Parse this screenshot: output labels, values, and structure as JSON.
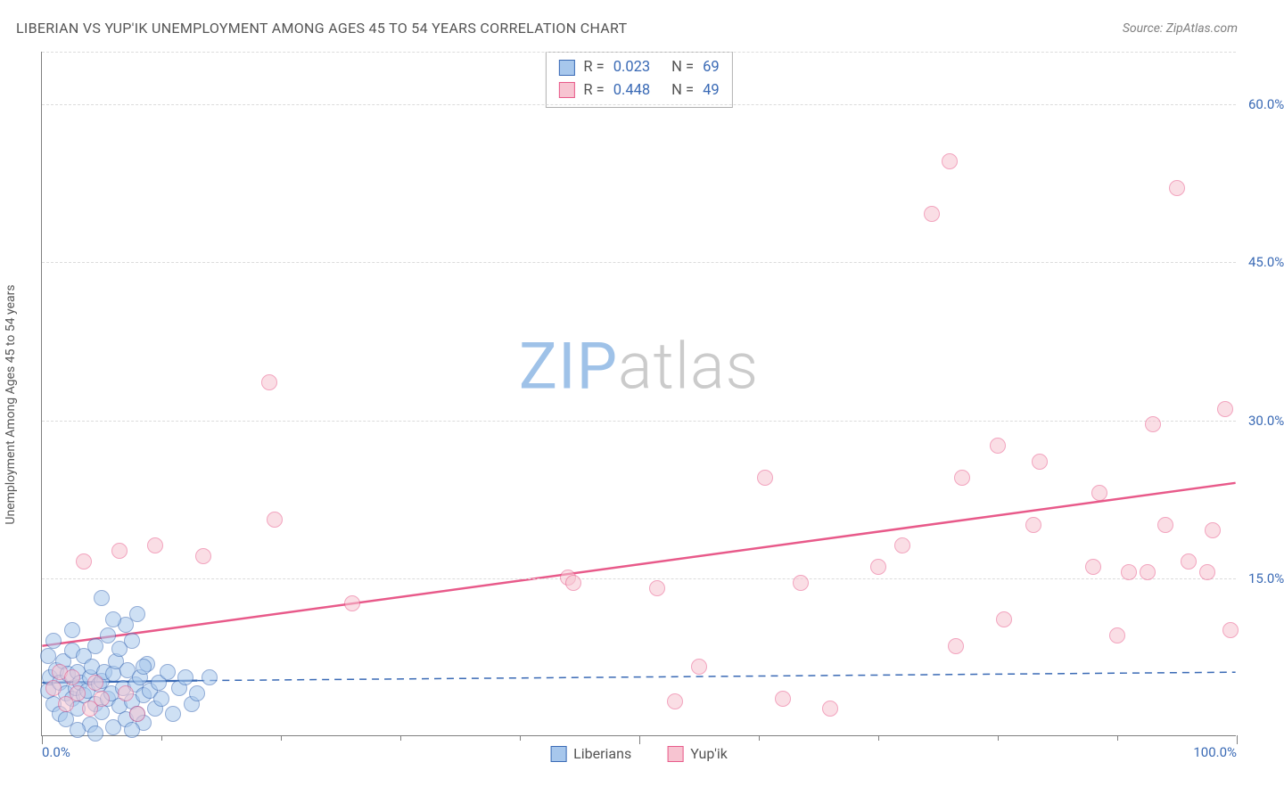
{
  "header": {
    "title": "LIBERIAN VS YUP'IK UNEMPLOYMENT AMONG AGES 45 TO 54 YEARS CORRELATION CHART",
    "source": "Source: ZipAtlas.com"
  },
  "ylabel": "Unemployment Among Ages 45 to 54 years",
  "watermark": {
    "zip": "ZIP",
    "atlas": "atlas",
    "zip_color": "#9fc2e8",
    "atlas_color": "#cbcbcb"
  },
  "chart": {
    "type": "scatter",
    "xlim": [
      0,
      100
    ],
    "ylim": [
      0,
      65
    ],
    "y_ticks": [
      15.0,
      30.0,
      45.0,
      60.0
    ],
    "y_tick_labels": [
      "15.0%",
      "30.0%",
      "45.0%",
      "60.0%"
    ],
    "x_ticks_minor": [
      0,
      10,
      20,
      30,
      40,
      50,
      60,
      70,
      80,
      90,
      100
    ],
    "x_ticks_major": [
      0,
      100
    ],
    "x_tick_labels": {
      "0": "0.0%",
      "100": "100.0%"
    },
    "background_color": "#ffffff",
    "grid_color": "#dcdcdc",
    "axis_color": "#808080",
    "marker_radius": 9,
    "marker_opacity": 0.55,
    "series": [
      {
        "name": "Liberians",
        "color_fill": "#a7c7ec",
        "color_stroke": "#3a6ab5",
        "r_value": "0.023",
        "n_value": "69",
        "trend": {
          "x1": 0,
          "y1": 5.0,
          "x2": 13,
          "y2": 5.2,
          "style": "solid",
          "stroke": "#3a6ab5",
          "width": 2.2
        },
        "trend_ext": {
          "x1": 13,
          "y1": 5.2,
          "x2": 100,
          "y2": 6.0,
          "style": "dashed",
          "stroke": "#3a6ab5",
          "width": 1.5
        },
        "points": [
          [
            0.5,
            4.2
          ],
          [
            0.7,
            5.5
          ],
          [
            1.0,
            3.0
          ],
          [
            1.2,
            6.2
          ],
          [
            1.5,
            2.0
          ],
          [
            1.5,
            5.0
          ],
          [
            1.8,
            7.0
          ],
          [
            2.0,
            4.0
          ],
          [
            2.0,
            1.5
          ],
          [
            2.2,
            5.8
          ],
          [
            2.5,
            3.5
          ],
          [
            2.5,
            8.0
          ],
          [
            2.8,
            4.5
          ],
          [
            3.0,
            6.0
          ],
          [
            3.0,
            2.5
          ],
          [
            3.2,
            5.0
          ],
          [
            3.5,
            3.8
          ],
          [
            3.5,
            7.5
          ],
          [
            3.8,
            4.2
          ],
          [
            4.0,
            5.5
          ],
          [
            4.0,
            1.0
          ],
          [
            4.2,
            6.5
          ],
          [
            4.5,
            3.0
          ],
          [
            4.5,
            8.5
          ],
          [
            4.8,
            4.8
          ],
          [
            5.0,
            5.2
          ],
          [
            5.0,
            2.2
          ],
          [
            5.2,
            6.0
          ],
          [
            5.5,
            3.5
          ],
          [
            5.5,
            9.5
          ],
          [
            5.8,
            4.0
          ],
          [
            6.0,
            5.8
          ],
          [
            6.0,
            0.8
          ],
          [
            6.2,
            7.0
          ],
          [
            6.5,
            2.8
          ],
          [
            6.5,
            8.2
          ],
          [
            6.8,
            4.5
          ],
          [
            7.0,
            10.5
          ],
          [
            7.0,
            1.5
          ],
          [
            7.2,
            6.2
          ],
          [
            7.5,
            3.2
          ],
          [
            7.5,
            9.0
          ],
          [
            7.8,
            4.8
          ],
          [
            8.0,
            11.5
          ],
          [
            8.0,
            2.0
          ],
          [
            8.2,
            5.5
          ],
          [
            8.5,
            3.8
          ],
          [
            8.5,
            1.2
          ],
          [
            8.8,
            6.8
          ],
          [
            9.0,
            4.2
          ],
          [
            5.0,
            13.0
          ],
          [
            9.5,
            2.5
          ],
          [
            9.8,
            5.0
          ],
          [
            10.0,
            3.5
          ],
          [
            10.5,
            6.0
          ],
          [
            11.0,
            2.0
          ],
          [
            11.5,
            4.5
          ],
          [
            12.0,
            5.5
          ],
          [
            12.5,
            3.0
          ],
          [
            13.0,
            4.0
          ],
          [
            3.0,
            0.5
          ],
          [
            4.5,
            0.2
          ],
          [
            6.0,
            11.0
          ],
          [
            2.5,
            10.0
          ],
          [
            1.0,
            9.0
          ],
          [
            0.5,
            7.5
          ],
          [
            7.5,
            0.5
          ],
          [
            8.5,
            6.5
          ],
          [
            14.0,
            5.5
          ]
        ]
      },
      {
        "name": "Yup'ik",
        "color_fill": "#f7c4d1",
        "color_stroke": "#e85a8a",
        "r_value": "0.448",
        "n_value": "49",
        "trend": {
          "x1": 0,
          "y1": 8.5,
          "x2": 100,
          "y2": 24.0,
          "style": "solid",
          "stroke": "#e85a8a",
          "width": 2.5
        },
        "points": [
          [
            1.0,
            4.5
          ],
          [
            1.5,
            6.0
          ],
          [
            2.0,
            3.0
          ],
          [
            2.5,
            5.5
          ],
          [
            3.0,
            4.0
          ],
          [
            3.5,
            16.5
          ],
          [
            4.0,
            2.5
          ],
          [
            4.5,
            5.0
          ],
          [
            5.0,
            3.5
          ],
          [
            6.5,
            17.5
          ],
          [
            7.0,
            4.0
          ],
          [
            8.0,
            2.0
          ],
          [
            9.5,
            18.0
          ],
          [
            13.5,
            17.0
          ],
          [
            19.0,
            33.5
          ],
          [
            19.5,
            20.5
          ],
          [
            26.0,
            12.5
          ],
          [
            44.0,
            15.0
          ],
          [
            44.5,
            14.5
          ],
          [
            51.5,
            14.0
          ],
          [
            53.0,
            3.2
          ],
          [
            55.0,
            6.5
          ],
          [
            60.5,
            24.5
          ],
          [
            62.0,
            3.5
          ],
          [
            63.5,
            14.5
          ],
          [
            66.0,
            2.5
          ],
          [
            70.0,
            16.0
          ],
          [
            72.0,
            18.0
          ],
          [
            74.5,
            49.5
          ],
          [
            76.0,
            54.5
          ],
          [
            76.5,
            8.5
          ],
          [
            77.0,
            24.5
          ],
          [
            80.0,
            27.5
          ],
          [
            80.5,
            11.0
          ],
          [
            83.0,
            20.0
          ],
          [
            83.5,
            26.0
          ],
          [
            88.0,
            16.0
          ],
          [
            88.5,
            23.0
          ],
          [
            90.0,
            9.5
          ],
          [
            91.0,
            15.5
          ],
          [
            92.5,
            15.5
          ],
          [
            93.0,
            29.5
          ],
          [
            94.0,
            20.0
          ],
          [
            95.0,
            52.0
          ],
          [
            96.0,
            16.5
          ],
          [
            97.5,
            15.5
          ],
          [
            98.0,
            19.5
          ],
          [
            99.0,
            31.0
          ],
          [
            99.5,
            10.0
          ]
        ]
      }
    ]
  },
  "legend_bottom": [
    {
      "label": "Liberians",
      "fill": "#a7c7ec",
      "stroke": "#3a6ab5"
    },
    {
      "label": "Yup'ik",
      "fill": "#f7c4d1",
      "stroke": "#e85a8a"
    }
  ]
}
